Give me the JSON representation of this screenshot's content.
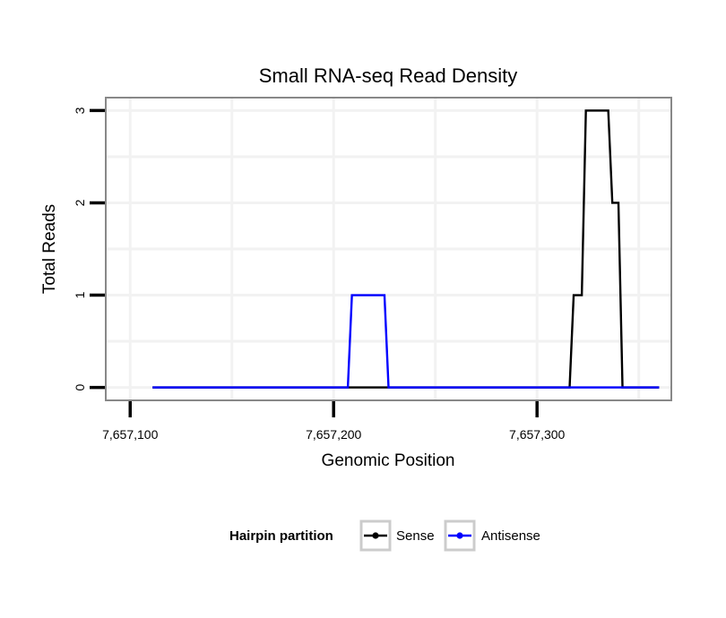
{
  "chart_data": {
    "type": "line",
    "title": "Small RNA-seq Read Density",
    "xlabel": "Genomic Position",
    "ylabel": "Total Reads",
    "xlim": [
      7657088,
      7657366
    ],
    "ylim": [
      -0.14,
      3.14
    ],
    "x_ticks": [
      7657100,
      7657200,
      7657300
    ],
    "x_tick_labels": [
      "7,657,100",
      "7,657,200",
      "7,657,300"
    ],
    "y_ticks": [
      0,
      1,
      2,
      3
    ],
    "y_tick_labels": [
      "0",
      "1",
      "2",
      "3"
    ],
    "grid": true,
    "legend": {
      "title": "Hairpin partition",
      "position": "bottom",
      "entries": [
        {
          "label": "Sense",
          "color": "#000000"
        },
        {
          "label": "Antisense",
          "color": "#0000ff"
        }
      ]
    },
    "series": [
      {
        "name": "Sense",
        "color": "#000000",
        "points": [
          [
            7657111,
            0
          ],
          [
            7657316,
            0
          ],
          [
            7657318,
            1
          ],
          [
            7657322,
            1
          ],
          [
            7657324,
            3
          ],
          [
            7657335,
            3
          ],
          [
            7657337,
            2
          ],
          [
            7657340,
            2
          ],
          [
            7657342,
            0
          ],
          [
            7657360,
            0
          ]
        ]
      },
      {
        "name": "Antisense",
        "color": "#0000ff",
        "points": [
          [
            7657111,
            0
          ],
          [
            7657207,
            0
          ],
          [
            7657209,
            1
          ],
          [
            7657225,
            1
          ],
          [
            7657227,
            0
          ],
          [
            7657360,
            0
          ]
        ]
      }
    ]
  },
  "colors": {
    "panel_border": "#888888",
    "grid": "#f2f2f2",
    "tick": "#000000"
  }
}
